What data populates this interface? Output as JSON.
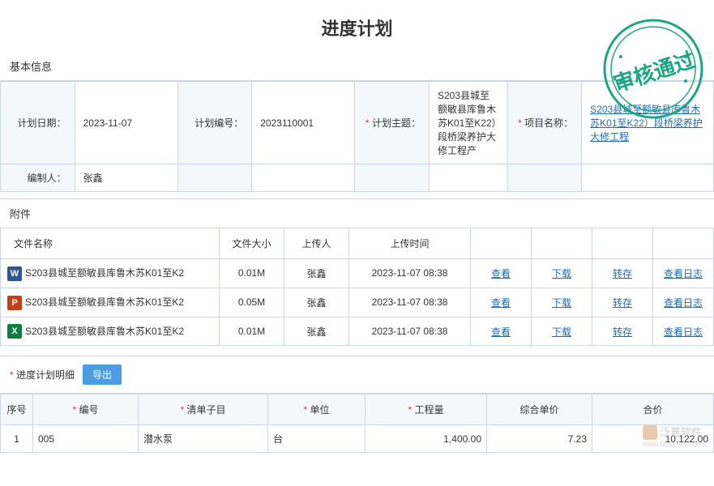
{
  "title": "进度计划",
  "stamp_text": "审核通过",
  "stamp_color": "#1ba784",
  "sections": {
    "basic_info": "基本信息",
    "attachments": "附件",
    "detail": "进度计划明细"
  },
  "info": {
    "plan_date_label": "计划日期：",
    "plan_date": "2023-11-07",
    "plan_no_label": "计划编号：",
    "plan_no": "2023110001",
    "plan_subject_label": "计划主题：",
    "plan_subject": "S203县城至额敏县库鲁木苏K01至K22）段桥梁养护大修工程产",
    "project_name_label": "项目名称：",
    "project_name": "S203县城至额敏县库鲁木苏K01至K22）段桥梁养护大修工程",
    "author_label": "编制人：",
    "author": "张鑫"
  },
  "attach_headers": {
    "name": "文件名称",
    "size": "文件大小",
    "uploader": "上传人",
    "time": "上传时间"
  },
  "attach_actions": {
    "view": "查看",
    "download": "下载",
    "transfer": "转存",
    "log": "查看日志"
  },
  "attachments": [
    {
      "icon_color": "#2b5797",
      "icon_letter": "W",
      "name": "S203县城至额敏县库鲁木苏K01至K2",
      "size": "0.01M",
      "uploader": "张鑫",
      "time": "2023-11-07 08:38"
    },
    {
      "icon_color": "#c43e1c",
      "icon_letter": "P",
      "name": "S203县城至额敏县库鲁木苏K01至K2",
      "size": "0.05M",
      "uploader": "张鑫",
      "time": "2023-11-07 08:38"
    },
    {
      "icon_color": "#107c41",
      "icon_letter": "X",
      "name": "S203县城至额敏县库鲁木苏K01至K2",
      "size": "0.01M",
      "uploader": "张鑫",
      "time": "2023-11-07 08:38"
    }
  ],
  "export_btn": "导出",
  "detail_headers": {
    "seq": "序号",
    "no": "编号",
    "item": "清单子目",
    "unit": "单位",
    "qty": "工程量",
    "price": "综合单价",
    "total": "合价"
  },
  "detail_rows": [
    {
      "seq": "1",
      "no": "005",
      "item": "潜水泵",
      "unit": "台",
      "qty": "1,400.00",
      "price": "7.23",
      "total": "10,122.00"
    }
  ],
  "watermark": {
    "text": "泛普软件",
    "sub": "www.fanpusoft.com"
  }
}
